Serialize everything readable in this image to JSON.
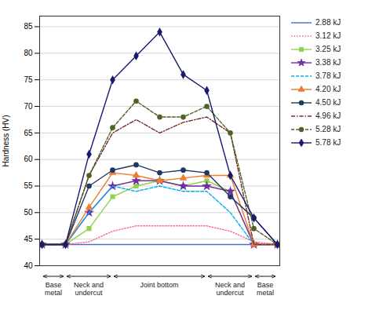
{
  "chart_data": {
    "type": "line",
    "ylabel": "Hardness (HV)",
    "x": [
      0,
      1,
      2,
      3,
      4,
      5,
      6,
      7,
      8,
      9,
      10
    ],
    "xlim": [
      -0.1,
      10.1
    ],
    "ylim": [
      40.0,
      87.0
    ],
    "yticks": [
      40,
      45,
      50,
      55,
      60,
      65,
      70,
      75,
      80,
      85
    ],
    "grid": true,
    "tick_labels": "y",
    "legend": "right",
    "series": [
      {
        "name": "2.88 kJ",
        "color": "#4472c4",
        "line_style": "solid",
        "values": [
          44,
          44,
          44,
          44,
          44,
          44,
          44,
          44,
          44,
          44,
          44
        ]
      },
      {
        "name": "3.12 kJ",
        "color": "#ff6699",
        "line_style": "dotted",
        "values": [
          44,
          44,
          44.5,
          46.5,
          47.5,
          47.5,
          47.5,
          47.5,
          46.5,
          44.5,
          44
        ]
      },
      {
        "name": "3.25 kJ",
        "color": "#92d050",
        "line_style": "solid",
        "marker": "square",
        "values": [
          44,
          44,
          47,
          53,
          55,
          56,
          55,
          56,
          54,
          44,
          44
        ]
      },
      {
        "name": "3.38 kJ",
        "color": "#7030a0",
        "line_style": "solid",
        "marker": "star",
        "values": [
          44,
          44,
          50,
          55,
          56,
          56,
          55,
          55,
          54,
          44,
          44
        ]
      },
      {
        "name": "3.78 kJ",
        "color": "#00b0f0",
        "line_style": "dashed",
        "values": [
          44,
          44,
          50,
          55,
          54,
          55,
          54,
          54,
          50,
          44,
          44
        ]
      },
      {
        "name": "4.20 kJ",
        "color": "#ed7d31",
        "line_style": "solid",
        "marker": "triangle",
        "values": [
          44,
          44,
          51,
          57.5,
          57,
          56,
          56.5,
          57,
          57,
          44,
          44
        ]
      },
      {
        "name": "4.50 kJ",
        "color": "#1f3864",
        "line_style": "solid",
        "marker": "circle",
        "values": [
          44,
          44,
          55,
          58,
          59,
          57.5,
          58,
          57.5,
          53,
          49,
          44
        ]
      },
      {
        "name": "4.96 kJ",
        "color": "#7b2c2c",
        "line_style": "dashdot",
        "values": [
          44,
          44,
          57,
          65,
          67.5,
          65,
          67,
          68,
          65,
          44,
          44
        ]
      },
      {
        "name": "5.28 kJ",
        "color": "#4f6228",
        "line_style": "dashed",
        "marker": "circle",
        "values": [
          44,
          44,
          57,
          66,
          71,
          68,
          68,
          70,
          65,
          47,
          44
        ]
      },
      {
        "name": "5.78 kJ",
        "color": "#1a1a6e",
        "line_style": "solid",
        "marker": "diamond",
        "values": [
          44,
          44,
          61,
          75,
          79.5,
          84,
          76,
          73,
          57,
          49,
          44
        ]
      }
    ],
    "annotations": [
      {
        "text": "Base\nmetal",
        "xmin": 0,
        "xmax": 1
      },
      {
        "text": "Neck and\nundercut",
        "xmin": 1,
        "xmax": 3
      },
      {
        "text": "Joint bottom",
        "xmin": 3,
        "xmax": 7
      },
      {
        "text": "Neck and\nundercut",
        "xmin": 7,
        "xmax": 9
      },
      {
        "text": "Base\nmetal",
        "xmin": 9,
        "xmax": 10
      }
    ]
  }
}
